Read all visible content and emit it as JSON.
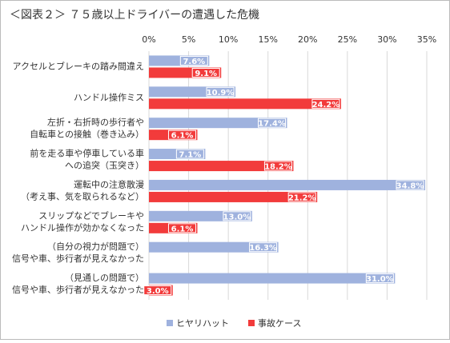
{
  "chart_data": {
    "type": "hbar",
    "title": "＜図表２＞ ７５歳以上ドライバーの遭遇した危機",
    "categories": [
      [
        "アクセルとブレーキの踏み間違え"
      ],
      [
        "ハンドル操作ミス"
      ],
      [
        "左折・右折時の歩行者や",
        "自転車との接触（巻き込み）"
      ],
      [
        "前を走る車や停車している車",
        "への追突（玉突き）"
      ],
      [
        "運転中の注意散漫",
        "（考え事、気を取られるなど）"
      ],
      [
        "スリップなどでブレーキや",
        "ハンドル操作が効かなくなった"
      ],
      [
        "（自分の視力が問題で）",
        "信号や車、歩行者が見えなかった"
      ],
      [
        "（見通しの問題で）",
        "信号や車、歩行者が見えなかった"
      ]
    ],
    "series": [
      {
        "name": "ヒヤリハット",
        "color": "#9fb2de",
        "values": [
          7.6,
          10.9,
          17.4,
          7.1,
          34.8,
          13.0,
          16.3,
          31.0
        ],
        "value_labels": [
          "7.6%",
          "10.9%",
          "17.4%",
          "7.1%",
          "34.8%",
          "13.0%",
          "16.3%",
          "31.0%"
        ]
      },
      {
        "name": "事故ケース",
        "color": "#f23b3b",
        "values": [
          9.1,
          24.2,
          6.1,
          18.2,
          21.2,
          6.1,
          null,
          3.0
        ],
        "value_labels": [
          "9.1%",
          "24.2%",
          "6.1%",
          "18.2%",
          "21.2%",
          "6.1%",
          null,
          "3.0%"
        ]
      }
    ],
    "xlim": [
      0,
      35
    ],
    "xticks": [
      {
        "value": 0,
        "label": "0%"
      },
      {
        "value": 5,
        "label": "5%"
      },
      {
        "value": 10,
        "label": "10%"
      },
      {
        "value": 15,
        "label": "15%"
      },
      {
        "value": 20,
        "label": "20%"
      },
      {
        "value": 25,
        "label": "25%"
      },
      {
        "value": 30,
        "label": "30%"
      },
      {
        "value": 35,
        "label": "35%"
      }
    ],
    "grid": true
  }
}
